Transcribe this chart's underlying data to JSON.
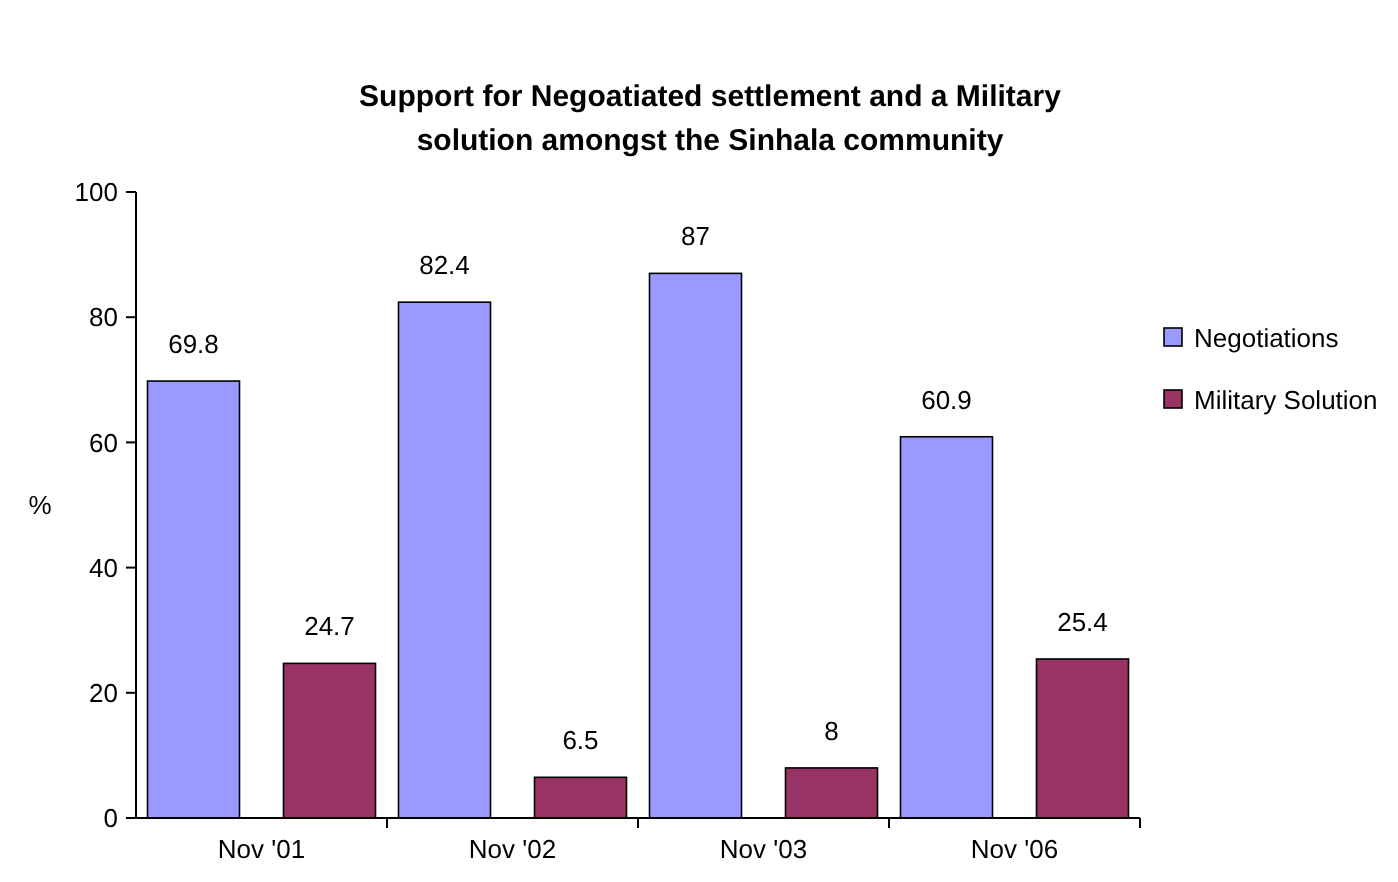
{
  "chart_data": {
    "type": "bar",
    "title": "Support for Negoatiated settlement and a Military solution amongst the Sinhala community",
    "ylabel": "%",
    "categories": [
      "Nov '01",
      "Nov '02",
      "Nov '03",
      "Nov '06"
    ],
    "series": [
      {
        "name": "Negotiations",
        "color": "#9999ff",
        "values": [
          69.8,
          82.4,
          87,
          60.9
        ]
      },
      {
        "name": "Military Solution",
        "color": "#993366",
        "values": [
          24.7,
          6.5,
          8,
          25.4
        ]
      }
    ],
    "ylim": [
      0,
      100
    ],
    "yticks": [
      0,
      20,
      40,
      60,
      80,
      100
    ],
    "grid": false,
    "legend": "right",
    "data_labels": true
  }
}
